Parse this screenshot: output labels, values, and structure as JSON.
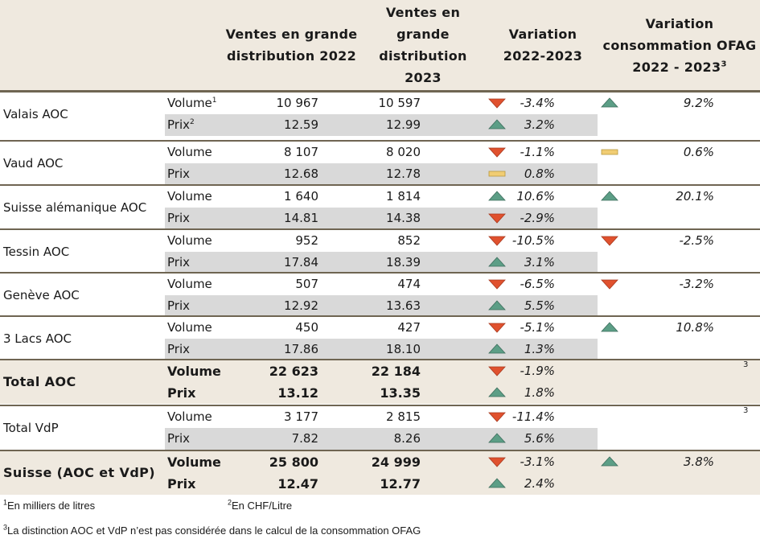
{
  "headers": {
    "col_2022": "Ventes en grande distribution 2022",
    "col_2023": "Ventes en grande distribution 2023",
    "variation": "Variation 2022-2023",
    "ofag": "Variation consommation OFAG 2022 - 2023",
    "ofag_footnote": "3"
  },
  "colors": {
    "up": "#5c9e86",
    "down": "#e0512e",
    "flat": "#f1cd73",
    "band": "#d9d9d9",
    "total_bg": "#efe9df",
    "rule": "#6f6552"
  },
  "regions": [
    {
      "name": "Valais AOC",
      "total": false,
      "volume": {
        "label": "Volume",
        "sup": "1",
        "v2022": "10 967",
        "v2023": "10 597",
        "var": "-3.4%",
        "dir": "down"
      },
      "prix": {
        "label": "Prix",
        "sup": "2",
        "v2022": "12.59",
        "v2023": "12.99",
        "var": "3.2%",
        "dir": "up"
      },
      "ofag": {
        "var": "9.2%",
        "dir": "up"
      }
    },
    {
      "name": "Vaud AOC",
      "total": false,
      "volume": {
        "label": "Volume",
        "v2022": "8 107",
        "v2023": "8 020",
        "var": "-1.1%",
        "dir": "down"
      },
      "prix": {
        "label": "Prix",
        "v2022": "12.68",
        "v2023": "12.78",
        "var": "0.8%",
        "dir": "flat"
      },
      "ofag": {
        "var": "0.6%",
        "dir": "flat"
      }
    },
    {
      "name": "Suisse alémanique AOC",
      "total": false,
      "volume": {
        "label": "Volume",
        "v2022": "1 640",
        "v2023": "1 814",
        "var": "10.6%",
        "dir": "up"
      },
      "prix": {
        "label": "Prix",
        "v2022": "14.81",
        "v2023": "14.38",
        "var": "-2.9%",
        "dir": "down"
      },
      "ofag": {
        "var": "20.1%",
        "dir": "up"
      }
    },
    {
      "name": "Tessin AOC",
      "total": false,
      "volume": {
        "label": "Volume",
        "v2022": "952",
        "v2023": "852",
        "var": "-10.5%",
        "dir": "down"
      },
      "prix": {
        "label": "Prix",
        "v2022": "17.84",
        "v2023": "18.39",
        "var": "3.1%",
        "dir": "up"
      },
      "ofag": {
        "var": "-2.5%",
        "dir": "down"
      }
    },
    {
      "name": "Genève AOC",
      "total": false,
      "volume": {
        "label": "Volume",
        "v2022": "507",
        "v2023": "474",
        "var": "-6.5%",
        "dir": "down"
      },
      "prix": {
        "label": "Prix",
        "v2022": "12.92",
        "v2023": "13.63",
        "var": "5.5%",
        "dir": "up"
      },
      "ofag": {
        "var": "-3.2%",
        "dir": "down"
      }
    },
    {
      "name": "3 Lacs AOC",
      "total": false,
      "volume": {
        "label": "Volume",
        "v2022": "450",
        "v2023": "427",
        "var": "-5.1%",
        "dir": "down"
      },
      "prix": {
        "label": "Prix",
        "v2022": "17.86",
        "v2023": "18.10",
        "var": "1.3%",
        "dir": "up"
      },
      "ofag": {
        "var": "10.8%",
        "dir": "up"
      }
    },
    {
      "name": "Total AOC",
      "total": true,
      "volume": {
        "label": "Volume",
        "v2022": "22 623",
        "v2023": "22 184",
        "var": "-1.9%",
        "dir": "down"
      },
      "prix": {
        "label": "Prix",
        "v2022": "13.12",
        "v2023": "13.35",
        "var": "1.8%",
        "dir": "up"
      },
      "ofag": {
        "footnote": "3"
      }
    },
    {
      "name": "Total VdP",
      "total": false,
      "volume": {
        "label": "Volume",
        "v2022": "3 177",
        "v2023": "2 815",
        "var": "-11.4%",
        "dir": "down"
      },
      "prix": {
        "label": "Prix",
        "v2022": "7.82",
        "v2023": "8.26",
        "var": "5.6%",
        "dir": "up"
      },
      "ofag": {
        "footnote": "3"
      }
    },
    {
      "name": "Suisse (AOC et VdP)",
      "total": true,
      "volume": {
        "label": "Volume",
        "v2022": "25 800",
        "v2023": "24 999",
        "var": "-3.1%",
        "dir": "down"
      },
      "prix": {
        "label": "Prix",
        "v2022": "12.47",
        "v2023": "12.77",
        "var": "2.4%",
        "dir": "up"
      },
      "ofag": {
        "var": "3.8%",
        "dir": "up"
      }
    }
  ],
  "footnotes": {
    "n1": {
      "mark": "1",
      "text": "En milliers de litres"
    },
    "n2": {
      "mark": "2",
      "text": "En CHF/Litre"
    },
    "n3": {
      "mark": "3",
      "text": "La distinction AOC et VdP n’est pas considérée dans le calcul de la consommation OFAG"
    }
  }
}
